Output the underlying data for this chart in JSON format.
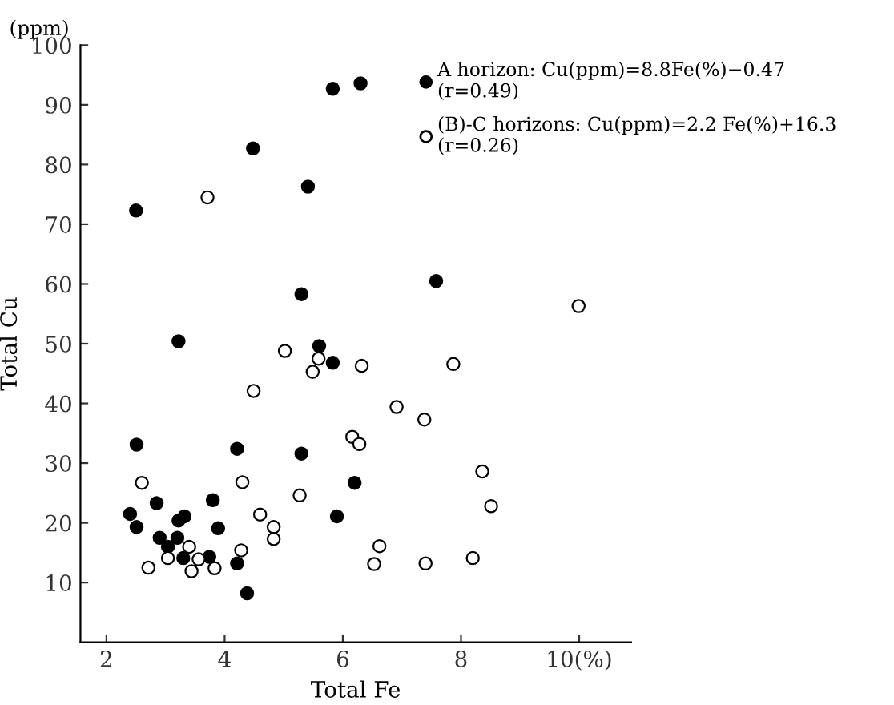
{
  "chart_data": {
    "type": "scatter",
    "xlabel": "Total Fe",
    "ylabel": "Total Cu",
    "annotations": [
      "(ppm)"
    ],
    "xlim": [
      1.56,
      10.88
    ],
    "xticks": [
      2,
      4,
      6,
      8,
      {
        "value": 10,
        "label": "10(%)"
      }
    ],
    "ylim": [
      0,
      100
    ],
    "yticks": [
      10,
      20,
      30,
      40,
      50,
      60,
      70,
      80,
      90,
      100
    ],
    "grid": false,
    "legend": "top right",
    "marker": "circle",
    "series": [
      {
        "name": "A horizon: Cu(ppm)=8.8Fe(%)−0.47\n(r=0.49)",
        "color": "#000000",
        "x": [
          2.5,
          4.48,
          5.83,
          6.3,
          5.41,
          5.3,
          3.22,
          5.6,
          7.58,
          5.83,
          2.51,
          4.21,
          5.3,
          6.2,
          2.85,
          3.8,
          2.4,
          2.51,
          5.9,
          3.32,
          3.22,
          3.89,
          2.9,
          3.2,
          3.04,
          3.3,
          3.74,
          4.21,
          4.38
        ],
        "values": [
          72.3,
          82.7,
          92.7,
          93.6,
          76.3,
          58.3,
          50.4,
          49.6,
          60.5,
          46.8,
          33.1,
          32.4,
          31.6,
          26.7,
          23.3,
          23.8,
          21.5,
          19.3,
          21.1,
          21.1,
          20.4,
          19.1,
          17.5,
          17.5,
          16.0,
          14.1,
          14.3,
          13.2,
          8.2
        ]
      },
      {
        "name": "(B)-C horizons: Cu(ppm)=2.2 Fe(%)+16.3\n(r=0.26)",
        "color": "#ffffff",
        "x": [
          3.71,
          5.02,
          9.99,
          7.87,
          5.59,
          5.49,
          6.32,
          4.49,
          6.91,
          7.38,
          6.16,
          6.28,
          2.6,
          4.3,
          5.27,
          4.6,
          4.83,
          4.83,
          3.4,
          4.28,
          3.04,
          3.56,
          2.71,
          3.44,
          3.83,
          8.36,
          8.51,
          6.62,
          6.53,
          7.4,
          8.2
        ],
        "values": [
          74.5,
          48.8,
          56.3,
          46.6,
          47.5,
          45.3,
          46.3,
          42.1,
          39.4,
          37.3,
          34.4,
          33.2,
          26.7,
          26.8,
          24.6,
          21.4,
          19.3,
          17.3,
          16.0,
          15.4,
          14.1,
          13.9,
          12.5,
          11.9,
          12.4,
          28.6,
          22.8,
          16.1,
          13.1,
          13.2,
          14.1
        ]
      }
    ]
  }
}
